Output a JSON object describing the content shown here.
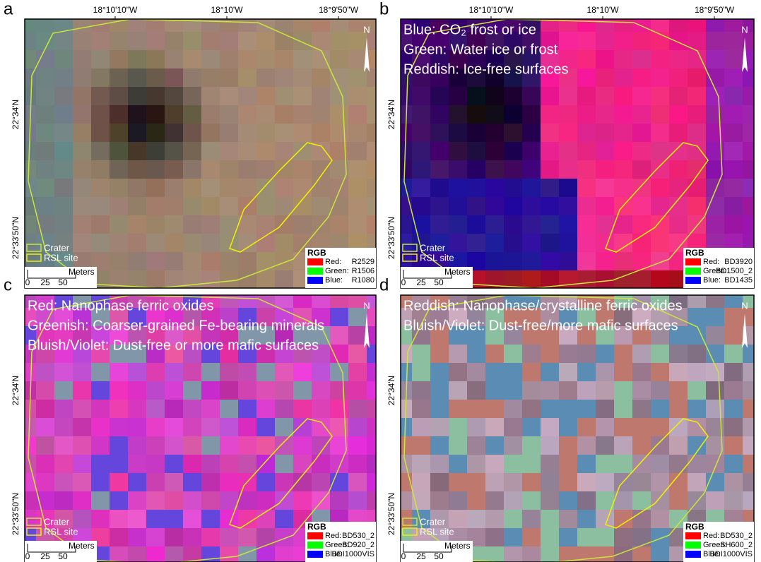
{
  "panels": [
    {
      "letter": "a",
      "lon_ticks": [
        "18°10'10\"W",
        "18°10'W",
        "18°9'50\"W"
      ],
      "lat_ticks": [
        "22°34'N",
        "22°33'50\"N"
      ],
      "north": "N",
      "annotations": [],
      "outline_legend": [
        "Crater",
        "RSL site"
      ],
      "scale": {
        "unit": "Meters",
        "ticks": [
          "0",
          "25",
          "50"
        ]
      },
      "rgb_legend": {
        "title": "RGB",
        "items": [
          {
            "channel": "Red:",
            "band": "R2529"
          },
          {
            "channel": "Green:",
            "band": "R1506"
          },
          {
            "channel": "Blue:",
            "band": "R1080"
          }
        ]
      }
    },
    {
      "letter": "b",
      "lon_ticks": [
        "18°10'10\"W",
        "18°10'W",
        "18°9'50\"W"
      ],
      "lat_ticks": [
        "22°34'N",
        "22°33'50\"N"
      ],
      "north": "N",
      "annotations": [
        "Blue: CO₂ frost or ice",
        "Green: Water ice or frost",
        "Reddish: Ice-free surfaces"
      ],
      "outline_legend": [
        "Crater",
        "RSL site"
      ],
      "scale": {
        "unit": "Meters",
        "ticks": [
          "0",
          "25",
          "50"
        ]
      },
      "rgb_legend": {
        "title": "RGB",
        "items": [
          {
            "channel": "Red:",
            "band": "BD3920"
          },
          {
            "channel": "Green:",
            "band": "BD1500_2"
          },
          {
            "channel": "Blue:",
            "band": "BD1435"
          }
        ]
      }
    },
    {
      "letter": "c",
      "lon_ticks": [],
      "lat_ticks": [
        "22°34'N",
        "22°33'50\"N"
      ],
      "north": "N",
      "annotations": [
        "Red: Nanophase ferric oxides",
        "Greenish: Coarser-grained Fe-bearing minerals",
        "Bluish/Violet: Dust-free or more mafic surfaces"
      ],
      "outline_legend": [
        "Crater",
        "RSL site"
      ],
      "scale": {
        "unit": "Meters",
        "ticks": [
          "0",
          "25",
          "50"
        ]
      },
      "rgb_legend": {
        "title": "RGB",
        "items": [
          {
            "channel": "Red:",
            "band": "BD530_2"
          },
          {
            "channel": "Green:",
            "band": "BD920_2"
          },
          {
            "channel": "Blue:",
            "band": "BDI1000VIS"
          }
        ]
      }
    },
    {
      "letter": "d",
      "lon_ticks": [],
      "lat_ticks": [
        "22°34'N",
        "22°33'50\"N"
      ],
      "north": "N",
      "annotations": [
        "Reddish: Nanophase/crystalline ferric oxides",
        "Bluish/Violet: Dust-free/more mafic surfaces"
      ],
      "outline_legend": [
        "Crater",
        "RSL site"
      ],
      "scale": {
        "unit": "Meters",
        "ticks": [
          "0",
          "25",
          "50"
        ]
      },
      "rgb_legend": {
        "title": "RGB",
        "items": [
          {
            "channel": "Red:",
            "band": "BD530_2"
          },
          {
            "channel": "Green:",
            "band": "SH600_2"
          },
          {
            "channel": "Blue:",
            "band": "BDI1000VIS"
          }
        ]
      }
    }
  ]
}
